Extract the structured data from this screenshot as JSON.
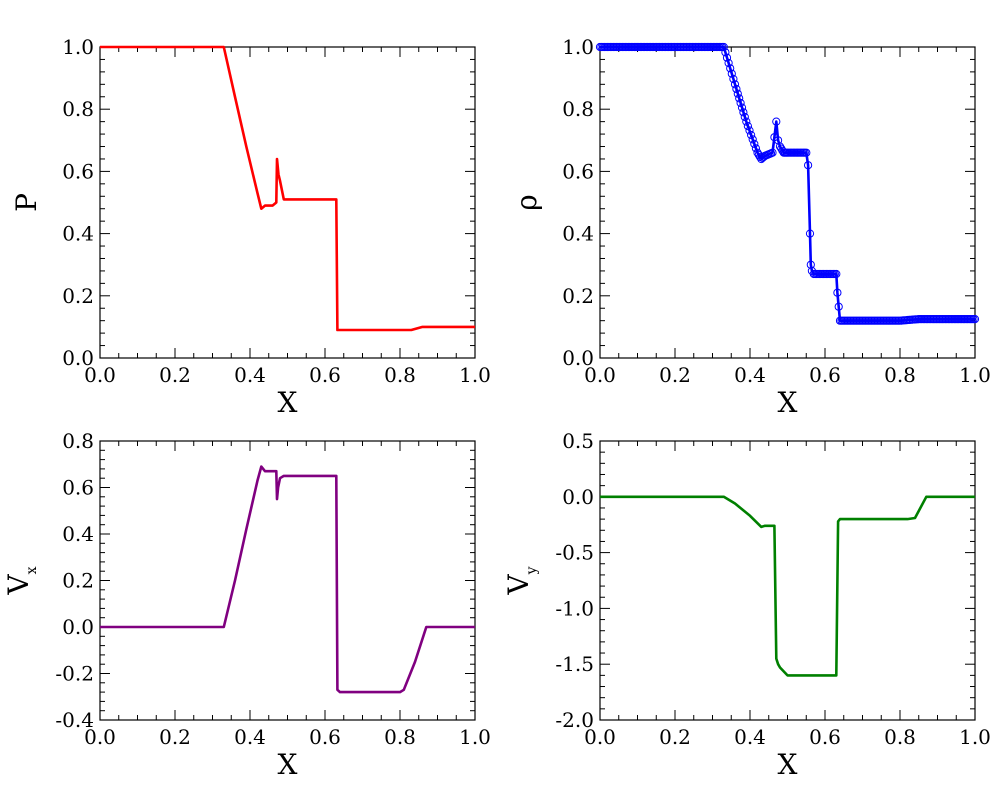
{
  "chart_data": [
    {
      "type": "line",
      "title": "",
      "xlabel": "X",
      "ylabel": "P",
      "xlim": [
        0.0,
        1.0
      ],
      "ylim": [
        0.0,
        1.0
      ],
      "xticks": [
        0.0,
        0.2,
        0.4,
        0.6,
        0.8,
        1.0
      ],
      "xtick_labels": [
        "0.0",
        "0.2",
        "0.4",
        "0.6",
        "0.8",
        "1.0"
      ],
      "yticks": [
        0.0,
        0.2,
        0.4,
        0.6,
        0.8,
        1.0
      ],
      "ytick_labels": [
        "0.0",
        "0.2",
        "0.4",
        "0.6",
        "0.8",
        "1.0"
      ],
      "series": [
        {
          "name": "P",
          "color": "#ff0000",
          "markers": false,
          "x": [
            0.0,
            0.33,
            0.36,
            0.39,
            0.42,
            0.43,
            0.44,
            0.46,
            0.47,
            0.472,
            0.476,
            0.48,
            0.49,
            0.5,
            0.55,
            0.63,
            0.633,
            0.64,
            0.7,
            0.8,
            0.83,
            0.86,
            1.0
          ],
          "y": [
            1.0,
            1.0,
            0.84,
            0.68,
            0.53,
            0.48,
            0.49,
            0.49,
            0.5,
            0.64,
            0.59,
            0.57,
            0.51,
            0.51,
            0.51,
            0.51,
            0.09,
            0.09,
            0.09,
            0.09,
            0.09,
            0.1,
            0.1
          ]
        }
      ]
    },
    {
      "type": "line",
      "title": "",
      "xlabel": "X",
      "ylabel": "ρ",
      "xlim": [
        0.0,
        1.0
      ],
      "ylim": [
        0.0,
        1.0
      ],
      "xticks": [
        0.0,
        0.2,
        0.4,
        0.6,
        0.8,
        1.0
      ],
      "xtick_labels": [
        "0.0",
        "0.2",
        "0.4",
        "0.6",
        "0.8",
        "1.0"
      ],
      "yticks": [
        0.0,
        0.2,
        0.4,
        0.6,
        0.8,
        1.0
      ],
      "ytick_labels": [
        "0.0",
        "0.2",
        "0.4",
        "0.6",
        "0.8",
        "1.0"
      ],
      "series": [
        {
          "name": "ρ",
          "color": "#0000ff",
          "markers": true,
          "x": [
            0.0,
            0.33,
            0.36,
            0.39,
            0.42,
            0.43,
            0.44,
            0.46,
            0.47,
            0.475,
            0.48,
            0.49,
            0.5,
            0.55,
            0.555,
            0.56,
            0.562,
            0.565,
            0.57,
            0.6,
            0.63,
            0.633,
            0.64,
            0.7,
            0.8,
            0.85,
            1.0
          ],
          "y": [
            1.0,
            1.0,
            0.88,
            0.76,
            0.66,
            0.64,
            0.65,
            0.66,
            0.76,
            0.7,
            0.68,
            0.66,
            0.66,
            0.66,
            0.62,
            0.4,
            0.3,
            0.28,
            0.27,
            0.27,
            0.27,
            0.21,
            0.12,
            0.12,
            0.12,
            0.125,
            0.125
          ]
        }
      ]
    },
    {
      "type": "line",
      "title": "",
      "xlabel": "X",
      "ylabel": "V",
      "ylabel_sub": "x",
      "xlim": [
        0.0,
        1.0
      ],
      "ylim": [
        -0.4,
        0.8
      ],
      "xticks": [
        0.0,
        0.2,
        0.4,
        0.6,
        0.8,
        1.0
      ],
      "xtick_labels": [
        "0.0",
        "0.2",
        "0.4",
        "0.6",
        "0.8",
        "1.0"
      ],
      "yticks": [
        -0.4,
        -0.2,
        0.0,
        0.2,
        0.4,
        0.6,
        0.8
      ],
      "ytick_labels": [
        "-0.4",
        "-0.2",
        "0.0",
        "0.2",
        "0.4",
        "0.6",
        "0.8"
      ],
      "series": [
        {
          "name": "Vx",
          "color": "#800080",
          "markers": false,
          "x": [
            0.0,
            0.33,
            0.36,
            0.39,
            0.42,
            0.43,
            0.44,
            0.47,
            0.472,
            0.475,
            0.48,
            0.49,
            0.6,
            0.63,
            0.633,
            0.64,
            0.7,
            0.78,
            0.8,
            0.81,
            0.84,
            0.87,
            1.0
          ],
          "y": [
            0.0,
            0.0,
            0.2,
            0.42,
            0.63,
            0.69,
            0.67,
            0.67,
            0.55,
            0.6,
            0.64,
            0.65,
            0.65,
            0.65,
            -0.27,
            -0.28,
            -0.28,
            -0.28,
            -0.28,
            -0.27,
            -0.15,
            0.0,
            0.0
          ]
        }
      ]
    },
    {
      "type": "line",
      "title": "",
      "xlabel": "X",
      "ylabel": "V",
      "ylabel_sub": "y",
      "xlim": [
        0.0,
        1.0
      ],
      "ylim": [
        -2.0,
        0.5
      ],
      "xticks": [
        0.0,
        0.2,
        0.4,
        0.6,
        0.8,
        1.0
      ],
      "xtick_labels": [
        "0.0",
        "0.2",
        "0.4",
        "0.6",
        "0.8",
        "1.0"
      ],
      "yticks": [
        -2.0,
        -1.5,
        -1.0,
        -0.5,
        0.0,
        0.5
      ],
      "ytick_labels": [
        "-2.0",
        "-1.5",
        "-1.0",
        "-0.5",
        "0.0",
        "0.5"
      ],
      "series": [
        {
          "name": "Vy",
          "color": "#008000",
          "markers": false,
          "x": [
            0.0,
            0.33,
            0.36,
            0.4,
            0.43,
            0.44,
            0.465,
            0.47,
            0.475,
            0.48,
            0.5,
            0.55,
            0.6,
            0.63,
            0.635,
            0.64,
            0.7,
            0.8,
            0.82,
            0.84,
            0.87,
            1.0
          ],
          "y": [
            0.0,
            0.0,
            -0.06,
            -0.17,
            -0.27,
            -0.26,
            -0.26,
            -1.45,
            -1.5,
            -1.53,
            -1.6,
            -1.6,
            -1.6,
            -1.6,
            -0.22,
            -0.2,
            -0.2,
            -0.2,
            -0.2,
            -0.19,
            0.0,
            0.0
          ]
        }
      ]
    }
  ]
}
